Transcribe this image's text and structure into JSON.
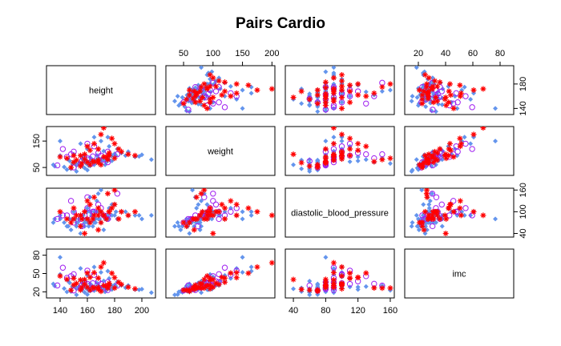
{
  "chart_data": {
    "type": "scatter",
    "subtype": "scatterplot-matrix",
    "title": "Pairs Cardio",
    "variables": [
      {
        "name": "height",
        "range": [
          130,
          210
        ],
        "ticks": [
          140,
          160,
          180,
          200
        ],
        "tick_labels": [
          "140",
          "160",
          "180",
          "200"
        ]
      },
      {
        "name": "weight",
        "range": [
          20,
          205
        ],
        "ticks": [
          50,
          100,
          150,
          200
        ],
        "tick_labels": [
          "50",
          "100",
          "150",
          "200"
        ]
      },
      {
        "name": "diastolic_blood_pressure",
        "range": [
          30,
          165
        ],
        "ticks": [
          40,
          80,
          120,
          160
        ],
        "tick_labels": [
          "40",
          "80",
          "120",
          "160"
        ]
      },
      {
        "name": "imc",
        "range": [
          10,
          90
        ],
        "ticks": [
          20,
          40,
          60,
          80
        ],
        "tick_labels": [
          "20",
          "40",
          "60",
          "80"
        ]
      }
    ],
    "axis_labels_drawn": {
      "top": [
        {
          "var": 1,
          "ticks": [
            50,
            100,
            150,
            200
          ],
          "labels": [
            "50",
            "100",
            "150",
            "200"
          ]
        },
        {
          "var": 3,
          "ticks": [
            20,
            40,
            60,
            80
          ],
          "labels": [
            "20",
            "40",
            "60",
            "80"
          ]
        }
      ],
      "bottom": [
        {
          "var": 0,
          "ticks": [
            140,
            160,
            180,
            200
          ],
          "labels": [
            "140",
            "160",
            "180",
            "200"
          ]
        },
        {
          "var": 2,
          "ticks": [
            40,
            80,
            120,
            160
          ],
          "labels": [
            "40",
            "80",
            "120",
            "160"
          ]
        }
      ],
      "left": [
        {
          "var": 1,
          "ticks": [
            50,
            150
          ],
          "labels": [
            "50",
            "150"
          ]
        },
        {
          "var": 3,
          "ticks": [
            20,
            50,
            80
          ],
          "labels": [
            "20",
            "50",
            "80"
          ]
        }
      ],
      "right": [
        {
          "var": 0,
          "ticks": [
            140,
            180
          ],
          "labels": [
            "140",
            "180"
          ]
        },
        {
          "var": 2,
          "ticks": [
            40,
            100,
            160
          ],
          "labels": [
            "40",
            "100",
            "160"
          ]
        }
      ]
    },
    "groups": [
      {
        "marker": "diamond",
        "color": "#6495ED"
      },
      {
        "marker": "circle",
        "color": "#A020F0"
      },
      {
        "marker": "asterisk",
        "color": "#FF0000"
      }
    ],
    "points": [
      [
        168,
        72,
        80,
        25.5,
        0
      ],
      [
        156,
        85,
        90,
        34.9,
        0
      ],
      [
        165,
        64,
        70,
        23.5,
        0
      ],
      [
        169,
        82,
        100,
        28.7,
        0
      ],
      [
        156,
        56,
        60,
        23.0,
        0
      ],
      [
        151,
        67,
        80,
        29.4,
        0
      ],
      [
        157,
        93,
        80,
        37.7,
        0
      ],
      [
        178,
        95,
        90,
        30.0,
        0
      ],
      [
        158,
        71,
        70,
        28.4,
        0
      ],
      [
        164,
        68,
        60,
        25.3,
        0
      ],
      [
        169,
        80,
        80,
        28.0,
        0
      ],
      [
        173,
        60,
        80,
        20.0,
        0
      ],
      [
        165,
        60,
        80,
        22.0,
        0
      ],
      [
        158,
        78,
        70,
        31.2,
        0
      ],
      [
        181,
        95,
        100,
        29.0,
        0
      ],
      [
        172,
        112,
        90,
        37.9,
        0
      ],
      [
        170,
        75,
        70,
        26.0,
        0
      ],
      [
        154,
        68,
        80,
        28.7,
        0
      ],
      [
        162,
        56,
        70,
        21.3,
        0
      ],
      [
        163,
        83,
        90,
        31.2,
        0
      ],
      [
        166,
        70,
        80,
        25.4,
        0
      ],
      [
        160,
        62,
        80,
        24.2,
        0
      ],
      [
        175,
        88,
        80,
        28.7,
        0
      ],
      [
        152,
        58,
        70,
        25.1,
        0
      ],
      [
        185,
        105,
        100,
        30.7,
        0
      ],
      [
        143,
        52,
        70,
        25.4,
        0
      ],
      [
        190,
        110,
        90,
        30.5,
        0
      ],
      [
        147,
        75,
        80,
        34.7,
        0
      ],
      [
        176,
        130,
        110,
        42.0,
        0
      ],
      [
        160,
        120,
        100,
        46.9,
        0
      ],
      [
        155,
        140,
        90,
        58.3,
        0
      ],
      [
        170,
        150,
        100,
        51.9,
        0
      ],
      [
        158,
        48,
        60,
        19.2,
        0
      ],
      [
        148,
        45,
        50,
        20.5,
        0
      ],
      [
        195,
        90,
        90,
        23.7,
        0
      ],
      [
        200,
        98,
        80,
        24.5,
        0
      ],
      [
        136,
        55,
        80,
        29.7,
        0
      ],
      [
        140,
        95,
        90,
        48.5,
        0
      ],
      [
        150,
        100,
        100,
        44.4,
        0
      ],
      [
        165,
        165,
        100,
        60.6,
        0
      ],
      [
        178,
        75,
        120,
        23.7,
        0
      ],
      [
        162,
        70,
        140,
        26.7,
        0
      ],
      [
        168,
        85,
        150,
        30.1,
        0
      ],
      [
        155,
        60,
        40,
        25.0,
        0
      ],
      [
        172,
        78,
        50,
        26.4,
        0
      ],
      [
        160,
        72,
        110,
        28.1,
        0
      ],
      [
        180,
        90,
        120,
        27.8,
        0
      ],
      [
        167,
        80,
        130,
        28.7,
        0
      ],
      [
        175,
        165,
        90,
        53.9,
        0
      ],
      [
        160,
        40,
        70,
        15.6,
        0
      ],
      [
        152,
        35,
        60,
        15.1,
        0
      ],
      [
        145,
        42,
        60,
        20.0,
        0
      ],
      [
        182,
        120,
        80,
        36.2,
        0
      ],
      [
        188,
        95,
        100,
        26.9,
        0
      ],
      [
        207,
        80,
        90,
        18.7,
        0
      ],
      [
        135,
        60,
        70,
        32.9,
        0
      ],
      [
        140,
        150,
        80,
        76.5,
        0
      ],
      [
        198,
        92,
        90,
        23.5,
        0
      ],
      [
        146,
        80,
        60,
        37.5,
        0
      ],
      [
        170,
        65,
        160,
        22.5,
        0
      ],
      [
        158,
        88,
        90,
        35.3,
        1
      ],
      [
        163,
        65,
        80,
        24.5,
        1
      ],
      [
        150,
        110,
        100,
        48.9,
        1
      ],
      [
        142,
        120,
        90,
        59.5,
        1
      ],
      [
        155,
        62,
        80,
        25.8,
        1
      ],
      [
        170,
        95,
        110,
        32.9,
        1
      ],
      [
        160,
        85,
        140,
        33.2,
        1
      ],
      [
        175,
        70,
        90,
        22.9,
        1
      ],
      [
        165,
        130,
        100,
        47.8,
        1
      ],
      [
        148,
        100,
        130,
        45.7,
        1
      ],
      [
        182,
        100,
        150,
        30.2,
        1
      ],
      [
        150,
        50,
        70,
        22.2,
        1
      ],
      [
        172,
        80,
        90,
        27.0,
        1
      ],
      [
        160,
        140,
        110,
        54.7,
        1
      ],
      [
        168,
        105,
        120,
        37.2,
        1
      ],
      [
        138,
        58,
        80,
        30.5,
        1
      ],
      [
        175,
        110,
        80,
        35.9,
        1
      ],
      [
        156,
        74,
        60,
        30.4,
        1
      ],
      [
        164,
        92,
        100,
        34.2,
        1
      ],
      [
        145,
        90,
        90,
        42.8,
        1
      ],
      [
        166,
        75,
        70,
        27.2,
        0
      ],
      [
        159,
        66,
        80,
        26.1,
        0
      ],
      [
        171,
        84,
        90,
        28.7,
        0
      ],
      [
        153,
        61,
        70,
        26.1,
        0
      ],
      [
        176,
        79,
        80,
        25.5,
        0
      ],
      [
        162,
        88,
        100,
        33.5,
        0
      ],
      [
        149,
        64,
        80,
        28.8,
        0
      ],
      [
        180,
        102,
        90,
        31.5,
        0
      ],
      [
        161,
        57,
        60,
        22.0,
        0
      ],
      [
        174,
        70,
        80,
        23.1,
        0
      ],
      [
        157,
        78,
        90,
        31.6,
        0
      ],
      [
        167,
        96,
        100,
        34.4,
        0
      ],
      [
        164,
        73,
        80,
        27.1,
        2
      ],
      [
        172,
        90,
        90,
        30.4,
        2
      ],
      [
        158,
        82,
        100,
        32.8,
        2
      ],
      [
        176,
        105,
        100,
        33.9,
        2
      ],
      [
        150,
        70,
        80,
        31.1,
        2
      ],
      [
        168,
        120,
        110,
        42.5,
        2
      ],
      [
        180,
        140,
        120,
        43.2,
        2
      ],
      [
        155,
        95,
        90,
        39.5,
        2
      ],
      [
        162,
        60,
        70,
        22.9,
        2
      ],
      [
        185,
        110,
        100,
        32.1,
        2
      ],
      [
        178,
        160,
        110,
        50.5,
        2
      ],
      [
        170,
        175,
        100,
        60.6,
        2
      ],
      [
        145,
        85,
        80,
        40.4,
        2
      ],
      [
        160,
        130,
        130,
        50.8,
        2
      ],
      [
        175,
        80,
        150,
        26.1,
        2
      ],
      [
        165,
        72,
        140,
        26.4,
        2
      ],
      [
        190,
        100,
        90,
        27.7,
        2
      ],
      [
        155,
        55,
        60,
        22.9,
        2
      ],
      [
        168,
        68,
        50,
        24.1,
        2
      ],
      [
        158,
        100,
        40,
        40.1,
        2
      ],
      [
        172,
        200,
        90,
        67.6,
        2
      ],
      [
        140,
        90,
        100,
        45.9,
        2
      ],
      [
        183,
        120,
        80,
        35.8,
        2
      ],
      [
        152,
        78,
        90,
        33.8,
        2
      ],
      [
        170,
        60,
        70,
        20.8,
        2
      ],
      [
        180,
        85,
        160,
        26.2,
        2
      ],
      [
        148,
        50,
        70,
        22.8,
        2
      ],
      [
        165,
        140,
        90,
        51.4,
        2
      ],
      [
        195,
        95,
        100,
        25.0,
        2
      ],
      [
        162,
        115,
        120,
        43.8,
        2
      ],
      [
        174,
        90,
        80,
        29.7,
        2
      ],
      [
        156,
        66,
        80,
        27.1,
        2
      ],
      [
        168,
        78,
        90,
        27.6,
        2
      ],
      [
        176,
        95,
        100,
        30.7,
        2
      ],
      [
        160,
        70,
        80,
        27.3,
        2
      ],
      [
        150,
        95,
        110,
        42.2,
        2
      ]
    ]
  }
}
